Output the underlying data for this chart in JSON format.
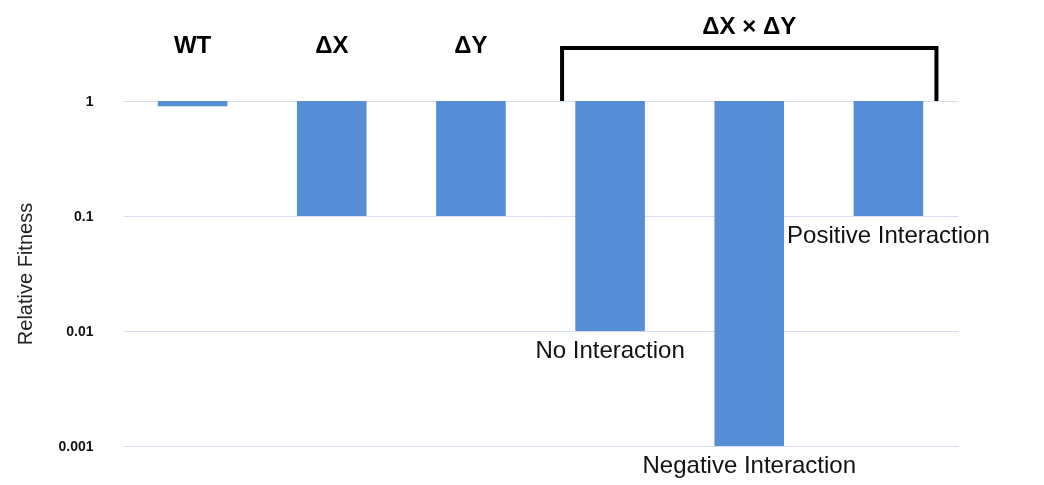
{
  "chart_data": {
    "type": "bar",
    "ylabel": "Relative Fitness",
    "categories": [
      "WT",
      "ΔX",
      "ΔY",
      null,
      null,
      null
    ],
    "base": [
      1,
      1,
      1,
      1,
      1,
      1
    ],
    "values": [
      -0.1,
      -0.9,
      -0.9,
      -0.99,
      -0.999,
      -0.9
    ],
    "color": "#558ed5",
    "log": true,
    "ylim": [
      0.001,
      1
    ],
    "yticks": [
      0.001,
      0.01,
      0.1,
      1
    ],
    "grid": "y",
    "annotations": [
      "ΔX × ΔY",
      {
        "text": "No Interaction",
        "y": 0.01
      },
      {
        "text": "Negative Interaction",
        "y": 0.001
      },
      {
        "text": "Positive Interaction",
        "y": 0.1
      }
    ]
  }
}
